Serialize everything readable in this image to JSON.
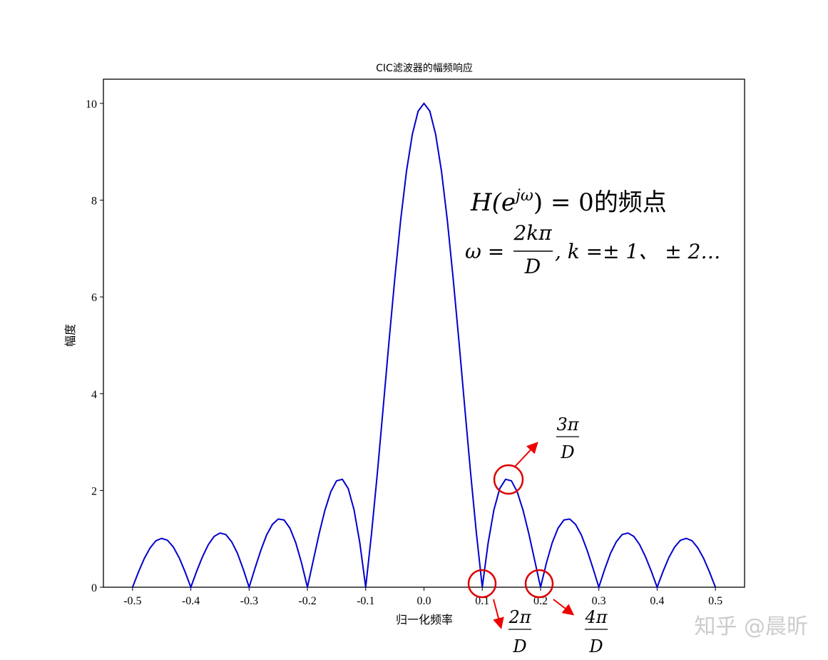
{
  "chart_data": {
    "type": "line",
    "title": "CIC滤波器的幅频响应",
    "x_label": "归一化频率",
    "y_label": "幅度",
    "x": [
      -0.5,
      -0.49,
      -0.48,
      -0.47,
      -0.46,
      -0.45,
      -0.44,
      -0.43,
      -0.42,
      -0.41,
      -0.4,
      -0.39,
      -0.38,
      -0.37,
      -0.36,
      -0.35,
      -0.34,
      -0.33,
      -0.32,
      -0.31,
      -0.3,
      -0.29,
      -0.28,
      -0.27,
      -0.26,
      -0.25,
      -0.24,
      -0.23,
      -0.22,
      -0.21,
      -0.2,
      -0.19,
      -0.18,
      -0.17,
      -0.16,
      -0.15,
      -0.14,
      -0.13,
      -0.12,
      -0.11,
      -0.1,
      -0.09,
      -0.08,
      -0.07,
      -0.06,
      -0.05,
      -0.04,
      -0.03,
      -0.02,
      -0.01,
      0,
      0.01,
      0.02,
      0.03,
      0.04,
      0.05,
      0.06,
      0.07,
      0.08,
      0.09,
      0.1,
      0.11,
      0.12,
      0.13,
      0.14,
      0.15,
      0.16,
      0.17,
      0.18,
      0.19,
      0.2,
      0.21,
      0.22,
      0.23,
      0.24,
      0.25,
      0.26,
      0.27,
      0.28,
      0.29,
      0.3,
      0.31,
      0.32,
      0.33,
      0.34,
      0.35,
      0.36,
      0.37,
      0.38,
      0.39,
      0.4,
      0.41,
      0.42,
      0.43,
      0.44,
      0.45,
      0.46,
      0.47,
      0.48,
      0.49,
      0.5
    ],
    "values": [
      0,
      0.31,
      0.59,
      0.81,
      0.96,
      1.01,
      0.97,
      0.83,
      0.61,
      0.32,
      0,
      0.33,
      0.63,
      0.88,
      1.05,
      1.12,
      1.09,
      0.94,
      0.7,
      0.37,
      0,
      0.39,
      0.76,
      1.08,
      1.3,
      1.41,
      1.39,
      1.22,
      0.92,
      0.5,
      0,
      0.55,
      1.1,
      1.59,
      1.97,
      2.2,
      2.23,
      2.04,
      1.6,
      0.91,
      0,
      1.11,
      2.36,
      3.71,
      5.08,
      6.39,
      7.59,
      8.6,
      9.36,
      9.84,
      10,
      9.84,
      9.36,
      8.6,
      7.59,
      6.39,
      5.08,
      3.71,
      2.36,
      1.11,
      0,
      0.91,
      1.6,
      2.04,
      2.23,
      2.2,
      1.97,
      1.59,
      1.1,
      0.55,
      0,
      0.5,
      0.92,
      1.22,
      1.39,
      1.41,
      1.3,
      1.08,
      0.76,
      0.39,
      0,
      0.37,
      0.7,
      0.94,
      1.09,
      1.12,
      1.05,
      0.88,
      0.63,
      0.33,
      0,
      0.32,
      0.61,
      0.83,
      0.97,
      1.01,
      0.96,
      0.81,
      0.59,
      0.31,
      0
    ],
    "color": "#0000cc",
    "xlim": [
      -0.55,
      0.55
    ],
    "xticks": [
      -0.5,
      -0.4,
      -0.3,
      -0.2,
      -0.1,
      {
        "value": 0,
        "label": "0.0"
      },
      0.1,
      0.2,
      0.3,
      0.4,
      0.5
    ],
    "ylim": [
      0,
      10.5
    ],
    "yticks": [
      0,
      2,
      4,
      6,
      8,
      10
    ],
    "annotations": {
      "formula_head": [
        "H(e",
        "jω",
        ") = 0的频点"
      ],
      "formula_omega": [
        "ω = ",
        "2kπ",
        "D",
        ", k =± 1、 ± 2…"
      ],
      "zeros": [
        {
          "num": "3π",
          "den": "D"
        },
        {
          "num": "2π",
          "den": "D"
        },
        {
          "num": "4π",
          "den": "D"
        }
      ]
    }
  },
  "watermark": "知乎 @晨昕"
}
